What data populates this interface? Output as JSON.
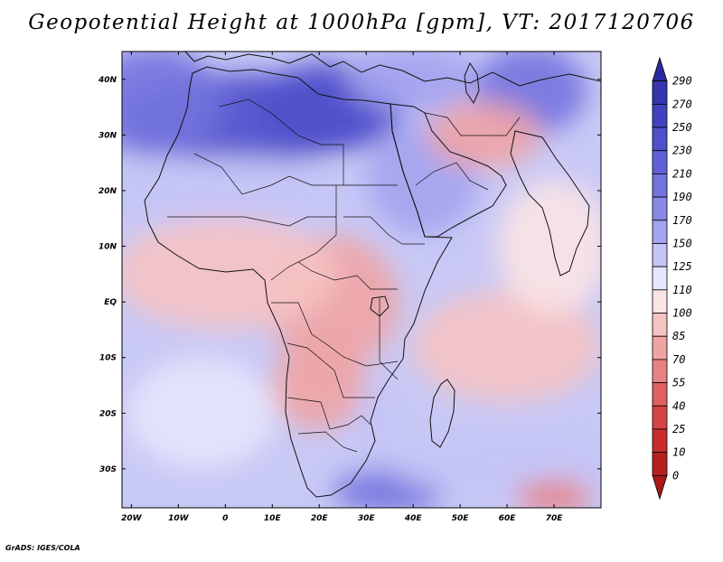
{
  "title": "Geopotential Height at 1000hPa [gpm], VT: 2017120706",
  "credit": "GrADS: IGES/COLA",
  "map": {
    "lon_range": [
      -22,
      80
    ],
    "lat_range": [
      -37,
      45
    ],
    "x_ticks": [
      {
        "lon": -20,
        "label": "20W"
      },
      {
        "lon": -10,
        "label": "10W"
      },
      {
        "lon": 0,
        "label": "0"
      },
      {
        "lon": 10,
        "label": "10E"
      },
      {
        "lon": 20,
        "label": "20E"
      },
      {
        "lon": 30,
        "label": "30E"
      },
      {
        "lon": 40,
        "label": "40E"
      },
      {
        "lon": 50,
        "label": "50E"
      },
      {
        "lon": 60,
        "label": "60E"
      },
      {
        "lon": 70,
        "label": "70E"
      }
    ],
    "y_ticks": [
      {
        "lat": 40,
        "label": "40N"
      },
      {
        "lat": 30,
        "label": "30N"
      },
      {
        "lat": 20,
        "label": "20N"
      },
      {
        "lat": 10,
        "label": "10N"
      },
      {
        "lat": 0,
        "label": "EQ"
      },
      {
        "lat": -10,
        "label": "10S"
      },
      {
        "lat": -20,
        "label": "20S"
      },
      {
        "lat": -30,
        "label": "30S"
      }
    ]
  },
  "colorbar": {
    "levels": [
      "290",
      "270",
      "250",
      "230",
      "210",
      "190",
      "170",
      "150",
      "125",
      "110",
      "100",
      "85",
      "70",
      "55",
      "40",
      "25",
      "10",
      "0"
    ],
    "colors": [
      "#2a2a9e",
      "#3535b0",
      "#4141c0",
      "#5050cc",
      "#6060d6",
      "#7373de",
      "#8888e6",
      "#a3a3ef",
      "#c4c4f6",
      "#e6e6fc",
      "#fbe4e4",
      "#f6c3c3",
      "#efa4a4",
      "#e88282",
      "#e06060",
      "#d74444",
      "#c82c2c",
      "#b82020",
      "#a81818"
    ]
  },
  "chart_data": {
    "type": "heatmap",
    "title": "Geopotential Height at 1000hPa [gpm], VT: 2017120706",
    "variable": "Geopotential Height",
    "units": "gpm",
    "level": "1000hPa",
    "valid_time": "2017120706",
    "contour_levels": [
      0,
      10,
      25,
      40,
      55,
      70,
      85,
      100,
      110,
      125,
      150,
      170,
      190,
      210,
      230,
      250,
      270,
      290
    ],
    "regions": [
      {
        "lon": 5,
        "lat": 33,
        "value": 245,
        "rx": 28,
        "ry": 8
      },
      {
        "lon": 22,
        "lat": 35,
        "value": 235,
        "rx": 16,
        "ry": 8
      },
      {
        "lon": -15,
        "lat": 36,
        "value": 205,
        "rx": 14,
        "ry": 10
      },
      {
        "lon": 65,
        "lat": 38,
        "value": 190,
        "rx": 12,
        "ry": 8
      },
      {
        "lon": 40,
        "lat": 40,
        "value": 165,
        "rx": 14,
        "ry": 6
      },
      {
        "lon": 0,
        "lat": 20,
        "value": 140,
        "rx": 30,
        "ry": 6
      },
      {
        "lon": 42,
        "lat": 22,
        "value": 150,
        "rx": 12,
        "ry": 10
      },
      {
        "lon": 55,
        "lat": 30,
        "value": 80,
        "rx": 12,
        "ry": 6
      },
      {
        "lon": 23,
        "lat": 0,
        "value": 78,
        "rx": 14,
        "ry": 12
      },
      {
        "lon": 20,
        "lat": -15,
        "value": 80,
        "rx": 10,
        "ry": 8
      },
      {
        "lon": 0,
        "lat": 5,
        "value": 95,
        "rx": 24,
        "ry": 10
      },
      {
        "lon": 60,
        "lat": -8,
        "value": 90,
        "rx": 20,
        "ry": 10
      },
      {
        "lon": 70,
        "lat": 10,
        "value": 100,
        "rx": 12,
        "ry": 12
      },
      {
        "lon": 32,
        "lat": -23,
        "value": 130,
        "rx": 5,
        "ry": 8
      },
      {
        "lon": 35,
        "lat": -34,
        "value": 205,
        "rx": 12,
        "ry": 4
      },
      {
        "lon": 60,
        "lat": -29,
        "value": 135,
        "rx": 25,
        "ry": 6
      },
      {
        "lon": -5,
        "lat": -20,
        "value": 118,
        "rx": 16,
        "ry": 10
      },
      {
        "lon": 70,
        "lat": -35,
        "value": 55,
        "rx": 8,
        "ry": 3
      }
    ]
  }
}
